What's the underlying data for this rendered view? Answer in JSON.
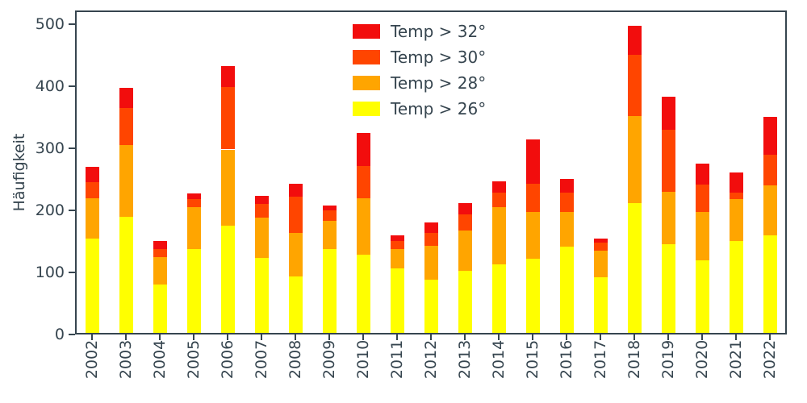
{
  "figure": {
    "background": "#ffffff",
    "text_color": "#36454f",
    "spine_color": "#36454f"
  },
  "chart_data": {
    "type": "bar",
    "stacked": true,
    "title": "",
    "xlabel": "",
    "ylabel": "Häufigkeit",
    "ylim": [
      0,
      522
    ],
    "yticks": [
      0,
      100,
      200,
      300,
      400,
      500
    ],
    "grid": false,
    "categories": [
      "2002",
      "2003",
      "2004",
      "2005",
      "2006",
      "2007",
      "2008",
      "2009",
      "2010",
      "2011",
      "2012",
      "2013",
      "2014",
      "2015",
      "2016",
      "2017",
      "2018",
      "2019",
      "2020",
      "2021",
      "2022"
    ],
    "series": [
      {
        "name": "Temp > 26°",
        "color": "#ffff00",
        "values": [
          155,
          190,
          80,
          138,
          175,
          123,
          93,
          137,
          128,
          107,
          88,
          103,
          113,
          122,
          142,
          92,
          212,
          145,
          120,
          150,
          160
        ]
      },
      {
        "name": "Temp > 28°",
        "color": "#ffa500",
        "values": [
          65,
          115,
          45,
          67,
          123,
          65,
          70,
          46,
          92,
          31,
          55,
          65,
          92,
          76,
          55,
          43,
          140,
          85,
          77,
          68,
          80
        ]
      },
      {
        "name": "Temp > 30°",
        "color": "#ff4500",
        "values": [
          25,
          60,
          13,
          13,
          100,
          22,
          59,
          17,
          52,
          12,
          20,
          25,
          23,
          45,
          31,
          13,
          98,
          100,
          45,
          10,
          50
        ]
      },
      {
        "name": "Temp > 32°",
        "color": "#f20d0d",
        "values": [
          25,
          32,
          12,
          9,
          34,
          13,
          21,
          8,
          53,
          10,
          18,
          19,
          19,
          71,
          23,
          6,
          47,
          53,
          33,
          33,
          60
        ]
      }
    ],
    "legend": {
      "position": "upper center",
      "entries": [
        {
          "label": "Temp > 32°",
          "color": "#f20d0d"
        },
        {
          "label": "Temp > 30°",
          "color": "#ff4500"
        },
        {
          "label": "Temp > 28°",
          "color": "#ffa500"
        },
        {
          "label": "Temp > 26°",
          "color": "#ffff00"
        }
      ]
    }
  }
}
